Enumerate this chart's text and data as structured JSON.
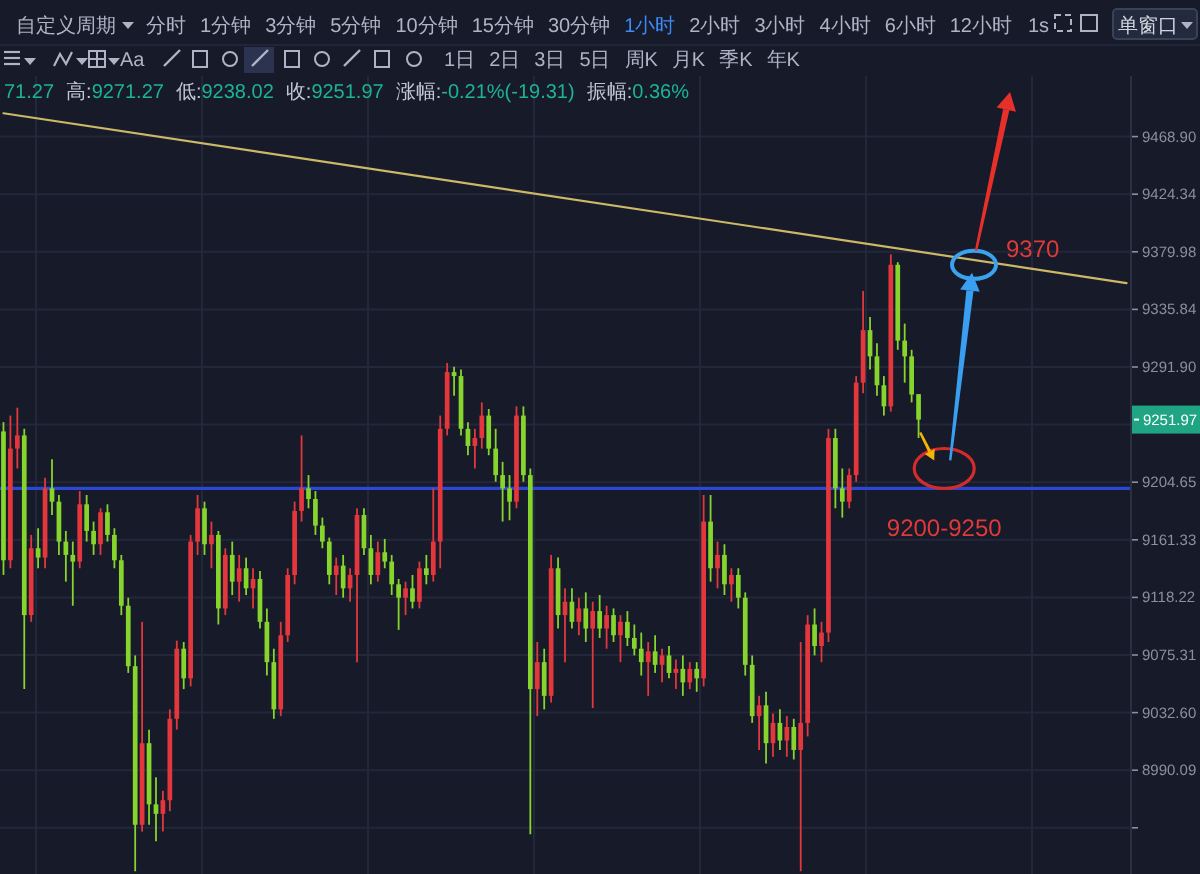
{
  "chart_data": {
    "type": "candlestick",
    "log": true,
    "tick_labels": "y",
    "grid": "y",
    "categories": [
      null,
      null,
      null,
      null,
      null,
      null,
      null,
      null,
      null,
      null,
      null,
      null,
      null,
      null,
      null,
      null,
      null,
      null,
      null,
      null,
      null,
      null,
      null,
      null,
      null,
      null,
      null,
      null,
      null,
      null,
      null,
      null,
      null,
      null,
      null,
      null,
      null,
      null,
      null,
      null,
      null,
      null,
      null,
      null,
      null,
      null,
      null,
      null,
      null,
      null,
      null,
      null,
      null,
      null,
      null,
      null,
      null,
      null,
      null,
      null,
      null,
      null,
      null,
      null,
      null,
      null,
      null,
      null,
      null,
      null,
      null,
      null,
      null,
      null,
      null,
      null,
      null,
      null,
      null,
      null,
      null,
      null,
      null,
      null,
      null,
      null,
      null,
      null,
      null,
      null,
      null,
      null,
      null,
      null,
      null,
      null,
      null,
      null,
      null,
      null,
      null,
      null,
      null,
      null,
      null,
      null,
      null,
      null,
      null,
      null,
      null,
      null,
      null,
      null,
      null,
      null,
      null,
      null,
      null,
      null,
      null,
      null,
      null,
      null,
      null,
      null,
      null,
      null,
      null,
      null,
      null,
      null,
      null,
      null,
      null,
      null,
      null,
      null,
      null,
      null,
      null,
      null,
      null,
      null,
      null,
      null,
      null,
      null,
      null,
      null,
      null,
      null,
      null,
      null,
      null,
      null,
      null,
      null,
      null,
      null,
      null,
      null,
      null
    ],
    "ohlc": [
      [
        9243,
        9250,
        9135,
        9146
      ],
      [
        9146,
        9255,
        9140,
        9230
      ],
      [
        9230,
        9261,
        9215,
        9240
      ],
      [
        9240,
        9245,
        9050,
        9105
      ],
      [
        9105,
        9165,
        9100,
        9155
      ],
      [
        9155,
        9170,
        9140,
        9148
      ],
      [
        9148,
        9208,
        9140,
        9200
      ],
      [
        9200,
        9222,
        9180,
        9190
      ],
      [
        9190,
        9195,
        9150,
        9160
      ],
      [
        9160,
        9168,
        9130,
        9150
      ],
      [
        9150,
        9160,
        9112,
        9145
      ],
      [
        9145,
        9198,
        9140,
        9188
      ],
      [
        9188,
        9195,
        9160,
        9168
      ],
      [
        9168,
        9175,
        9150,
        9158
      ],
      [
        9158,
        9185,
        9150,
        9182
      ],
      [
        9182,
        9188,
        9160,
        9165
      ],
      [
        9165,
        9170,
        9140,
        9146
      ],
      [
        9146,
        9150,
        9105,
        9112
      ],
      [
        9112,
        9118,
        9062,
        9067
      ],
      [
        9067,
        9075,
        8916,
        8950
      ],
      [
        8950,
        9100,
        8945,
        9010
      ],
      [
        9010,
        9020,
        8950,
        8965
      ],
      [
        8965,
        8985,
        8938,
        8958
      ],
      [
        8958,
        8975,
        8945,
        8968
      ],
      [
        8968,
        9035,
        8960,
        9028
      ],
      [
        9028,
        9086,
        9020,
        9080
      ],
      [
        9080,
        9085,
        9050,
        9058
      ],
      [
        9058,
        9165,
        9052,
        9160
      ],
      [
        9160,
        9195,
        9150,
        9185
      ],
      [
        9185,
        9190,
        9150,
        9158
      ],
      [
        9158,
        9175,
        9140,
        9165
      ],
      [
        9165,
        9168,
        9098,
        9110
      ],
      [
        9110,
        9155,
        9105,
        9150
      ],
      [
        9150,
        9160,
        9120,
        9130
      ],
      [
        9130,
        9150,
        9115,
        9140
      ],
      [
        9140,
        9148,
        9120,
        9125
      ],
      [
        9125,
        9140,
        9110,
        9132
      ],
      [
        9132,
        9138,
        9095,
        9100
      ],
      [
        9100,
        9110,
        9060,
        9070
      ],
      [
        9070,
        9080,
        9028,
        9035
      ],
      [
        9035,
        9100,
        9030,
        9090
      ],
      [
        9090,
        9140,
        9085,
        9135
      ],
      [
        9135,
        9190,
        9128,
        9183
      ],
      [
        9183,
        9240,
        9175,
        9200
      ],
      [
        9200,
        9210,
        9185,
        9192
      ],
      [
        9192,
        9198,
        9165,
        9172
      ],
      [
        9172,
        9178,
        9155,
        9160
      ],
      [
        9160,
        9163,
        9128,
        9135
      ],
      [
        9135,
        9148,
        9120,
        9142
      ],
      [
        9142,
        9150,
        9118,
        9125
      ],
      [
        9125,
        9140,
        9115,
        9135
      ],
      [
        9135,
        9185,
        9070,
        9180
      ],
      [
        9180,
        9185,
        9150,
        9155
      ],
      [
        9155,
        9165,
        9128,
        9135
      ],
      [
        9135,
        9160,
        9130,
        9152
      ],
      [
        9152,
        9162,
        9140,
        9145
      ],
      [
        9145,
        9150,
        9120,
        9128
      ],
      [
        9128,
        9132,
        9094,
        9118
      ],
      [
        9118,
        9130,
        9105,
        9125
      ],
      [
        9125,
        9135,
        9110,
        9115
      ],
      [
        9115,
        9145,
        9110,
        9140
      ],
      [
        9140,
        9150,
        9128,
        9135
      ],
      [
        9135,
        9200,
        9130,
        9160
      ],
      [
        9160,
        9255,
        9140,
        9245
      ],
      [
        9245,
        9295,
        9240,
        9288
      ],
      [
        9288,
        9292,
        9270,
        9285
      ],
      [
        9285,
        9290,
        9240,
        9245
      ],
      [
        9245,
        9250,
        9225,
        9232
      ],
      [
        9232,
        9245,
        9215,
        9238
      ],
      [
        9238,
        9265,
        9230,
        9255
      ],
      [
        9255,
        9260,
        9225,
        9230
      ],
      [
        9230,
        9245,
        9205,
        9210
      ],
      [
        9210,
        9220,
        9175,
        9200
      ],
      [
        9200,
        9210,
        9176,
        9190
      ],
      [
        9190,
        9262,
        9185,
        9255
      ],
      [
        9255,
        9262,
        9205,
        9210
      ],
      [
        9210,
        9215,
        8943,
        9050
      ],
      [
        9050,
        9085,
        9030,
        9070
      ],
      [
        9070,
        9080,
        9035,
        9045
      ],
      [
        9045,
        9150,
        9040,
        9140
      ],
      [
        9140,
        9148,
        9095,
        9105
      ],
      [
        9105,
        9125,
        9070,
        9115
      ],
      [
        9115,
        9125,
        9095,
        9100
      ],
      [
        9100,
        9118,
        9090,
        9110
      ],
      [
        9110,
        9122,
        9085,
        9095
      ],
      [
        9095,
        9115,
        9036,
        9108
      ],
      [
        9108,
        9120,
        9088,
        9095
      ],
      [
        9095,
        9112,
        9080,
        9105
      ],
      [
        9105,
        9110,
        9085,
        9090
      ],
      [
        9090,
        9105,
        9070,
        9100
      ],
      [
        9100,
        9108,
        9082,
        9088
      ],
      [
        9088,
        9098,
        9075,
        9080
      ],
      [
        9080,
        9092,
        9060,
        9070
      ],
      [
        9070,
        9085,
        9045,
        9078
      ],
      [
        9078,
        9090,
        9062,
        9068
      ],
      [
        9068,
        9080,
        9055,
        9075
      ],
      [
        9075,
        9082,
        9058,
        9062
      ],
      [
        9062,
        9072,
        9050,
        9065
      ],
      [
        9065,
        9075,
        9045,
        9055
      ],
      [
        9055,
        9070,
        9050,
        9065
      ],
      [
        9065,
        9070,
        9048,
        9058
      ],
      [
        9058,
        9195,
        9052,
        9175
      ],
      [
        9175,
        9195,
        9130,
        9140
      ],
      [
        9140,
        9160,
        9125,
        9150
      ],
      [
        9150,
        9158,
        9120,
        9128
      ],
      [
        9128,
        9140,
        9115,
        9135
      ],
      [
        9135,
        9140,
        9110,
        9118
      ],
      [
        9118,
        9122,
        9060,
        9068
      ],
      [
        9068,
        9075,
        9025,
        9030
      ],
      [
        9030,
        9045,
        9005,
        9038
      ],
      [
        9038,
        9048,
        8995,
        9010
      ],
      [
        9010,
        9032,
        9000,
        9025
      ],
      [
        9025,
        9035,
        9005,
        9012
      ],
      [
        9012,
        9030,
        9000,
        9022
      ],
      [
        9022,
        9028,
        8998,
        9005
      ],
      [
        9005,
        9085,
        8916,
        9025
      ],
      [
        9025,
        9105,
        9015,
        9098
      ],
      [
        9098,
        9110,
        9075,
        9082
      ],
      [
        9082,
        9100,
        9070,
        9092
      ],
      [
        9092,
        9245,
        9085,
        9238
      ],
      [
        9238,
        9245,
        9185,
        9200
      ],
      [
        9200,
        9215,
        9178,
        9190
      ],
      [
        9190,
        9215,
        9185,
        9210
      ],
      [
        9210,
        9285,
        9205,
        9280
      ],
      [
        9280,
        9350,
        9272,
        9320
      ],
      [
        9320,
        9330,
        9290,
        9300
      ],
      [
        9300,
        9310,
        9270,
        9278
      ],
      [
        9278,
        9285,
        9255,
        9262
      ],
      [
        9262,
        9378,
        9258,
        9370
      ],
      [
        9370,
        9372,
        9305,
        9312
      ],
      [
        9312,
        9325,
        9280,
        9300
      ],
      [
        9300,
        9305,
        9265,
        9271
      ],
      [
        9271.27,
        9271.27,
        9238.02,
        9251.97
      ],
      null,
      null,
      null,
      null,
      null,
      null,
      null,
      null,
      null,
      null,
      null,
      null,
      null,
      null,
      null,
      null,
      null,
      null,
      null,
      null,
      null,
      null,
      null,
      null,
      null,
      null,
      null,
      null,
      null,
      null
    ],
    "colors": [
      "#86d42c",
      "#e3373d",
      "#e3373d",
      "#86d42c",
      "#e3373d",
      "#86d42c",
      "#e3373d",
      "#86d42c",
      "#86d42c",
      "#86d42c",
      "#86d42c",
      "#e3373d",
      "#86d42c",
      "#86d42c",
      "#e3373d",
      "#86d42c",
      "#86d42c",
      "#86d42c",
      "#86d42c",
      "#86d42c",
      "#e3373d",
      "#86d42c",
      "#86d42c",
      "#e3373d",
      "#e3373d",
      "#e3373d",
      "#86d42c",
      "#e3373d",
      "#e3373d",
      "#86d42c",
      "#e3373d",
      "#86d42c",
      "#e3373d",
      "#86d42c",
      "#e3373d",
      "#86d42c",
      "#e3373d",
      "#86d42c",
      "#86d42c",
      "#86d42c",
      "#e3373d",
      "#e3373d",
      "#e3373d",
      "#e3373d",
      "#86d42c",
      "#86d42c",
      "#86d42c",
      "#86d42c",
      "#e3373d",
      "#86d42c",
      "#e3373d",
      "#e3373d",
      "#86d42c",
      "#86d42c",
      "#e3373d",
      "#86d42c",
      "#86d42c",
      "#86d42c",
      "#e3373d",
      "#86d42c",
      "#e3373d",
      "#86d42c",
      "#e3373d",
      "#e3373d",
      "#e3373d",
      "#86d42c",
      "#86d42c",
      "#86d42c",
      "#e3373d",
      "#e3373d",
      "#86d42c",
      "#86d42c",
      "#86d42c",
      "#86d42c",
      "#e3373d",
      "#86d42c",
      "#86d42c",
      "#e3373d",
      "#86d42c",
      "#e3373d",
      "#86d42c",
      "#e3373d",
      "#86d42c",
      "#e3373d",
      "#86d42c",
      "#e3373d",
      "#86d42c",
      "#e3373d",
      "#86d42c",
      "#e3373d",
      "#86d42c",
      "#86d42c",
      "#86d42c",
      "#e3373d",
      "#86d42c",
      "#e3373d",
      "#86d42c",
      "#e3373d",
      "#86d42c",
      "#e3373d",
      "#86d42c",
      "#e3373d",
      "#86d42c",
      "#e3373d",
      "#86d42c",
      "#e3373d",
      "#86d42c",
      "#86d42c",
      "#86d42c",
      "#e3373d",
      "#86d42c",
      "#e3373d",
      "#86d42c",
      "#e3373d",
      "#86d42c",
      "#e3373d",
      "#e3373d",
      "#86d42c",
      "#e3373d",
      "#e3373d",
      "#86d42c",
      "#86d42c",
      "#e3373d",
      "#e3373d",
      "#e3373d",
      "#86d42c",
      "#86d42c",
      "#86d42c",
      "#e3373d",
      "#86d42c",
      "#86d42c",
      "#86d42c",
      "#86d42c",
      null,
      null,
      null,
      null,
      null,
      null,
      null,
      null,
      null,
      null,
      null,
      null,
      null,
      null,
      null,
      null,
      null,
      null,
      null,
      null,
      null,
      null,
      null,
      null,
      null,
      null,
      null,
      null,
      null,
      null
    ],
    "ylim": [
      8914,
      9516
    ],
    "yticks": [
      {
        "value": 9468.9,
        "label": "9468.90"
      },
      {
        "value": 9424.34,
        "label": "9424.34"
      },
      {
        "value": 9379.98,
        "label": "9379.98"
      },
      {
        "value": 9335.84,
        "label": "9335.84"
      },
      {
        "value": 9291.9,
        "label": "9291.90"
      },
      {
        "value": 9248.2,
        "label": null
      },
      {
        "value": 9204.65,
        "label": "9204.65"
      },
      {
        "value": 9161.33,
        "label": "9161.33"
      },
      {
        "value": 9118.22,
        "label": "9118.22"
      },
      {
        "value": 9075.31,
        "label": "9075.31"
      },
      {
        "value": 9032.6,
        "label": "9032.60"
      },
      {
        "value": 8990.09,
        "label": "8990.09"
      },
      {
        "value": 8947.8,
        "label": null
      }
    ],
    "series": [
      {
        "type": "line",
        "values": [
          9487,
          null,
          null,
          null,
          null,
          null,
          null,
          null,
          null,
          null,
          null,
          null,
          null,
          null,
          null,
          null,
          null,
          null,
          null,
          null,
          null,
          null,
          null,
          null,
          null,
          null,
          null,
          null,
          null,
          null,
          null,
          null,
          null,
          null,
          null,
          null,
          null,
          null,
          null,
          null,
          null,
          null,
          null,
          null,
          null,
          null,
          null,
          null,
          null,
          null,
          null,
          null,
          null,
          null,
          null,
          null,
          null,
          null,
          null,
          null,
          null,
          null,
          null,
          null,
          null,
          null,
          null,
          null,
          null,
          null,
          null,
          null,
          null,
          null,
          null,
          null,
          null,
          null,
          null,
          null,
          null,
          null,
          null,
          null,
          null,
          null,
          null,
          null,
          null,
          null,
          null,
          null,
          null,
          null,
          null,
          null,
          null,
          null,
          null,
          null,
          null,
          null,
          null,
          null,
          null,
          null,
          null,
          null,
          null,
          null,
          null,
          null,
          null,
          null,
          null,
          null,
          null,
          null,
          null,
          null,
          null,
          null,
          null,
          null,
          null,
          null,
          null,
          null,
          null,
          null,
          null,
          null,
          null,
          null,
          null,
          null,
          null,
          null,
          null,
          null,
          null,
          null,
          null,
          null,
          null,
          null,
          null,
          null,
          null,
          null,
          null,
          null,
          null,
          null,
          null,
          null,
          null,
          null,
          null,
          null,
          null,
          null,
          9356
        ],
        "color": "#cdb867"
      }
    ],
    "ref_lines": [
      {
        "axis": "y",
        "value": 9200,
        "color": "#2c47d4"
      }
    ],
    "annotations": [
      "自定义周期",
      "分时",
      "1分钟",
      "3分钟",
      "5分钟",
      "10分钟",
      "15分钟",
      "30分钟",
      "1小时",
      "2小时",
      "3小时",
      "4小时",
      "6小时",
      "12小时",
      "1日",
      "2日",
      "3日",
      "5日",
      "周K",
      "月K",
      "季K",
      "年K",
      "1s",
      "单窗口",
      "Aa",
      "71.27",
      "高:9271.27",
      "低:9238.02",
      "收:9251.97",
      "涨幅:-0.21%(-19.31)",
      "振幅:0.36%",
      "9251.97",
      {
        "text": "9370",
        "y": 9370
      },
      {
        "text": "9200-9250",
        "y": 9215
      }
    ]
  }
}
